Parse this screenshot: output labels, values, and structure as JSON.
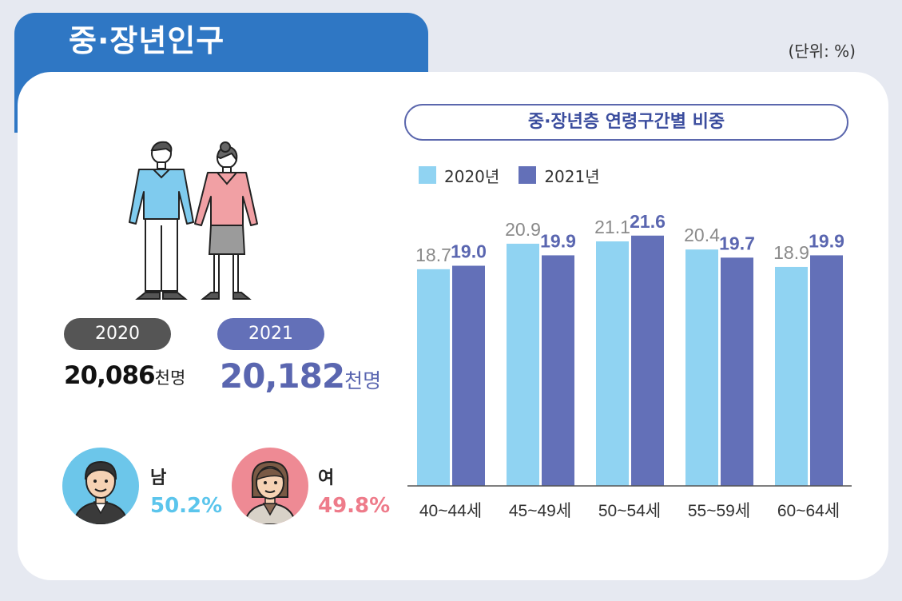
{
  "header": {
    "title": "중·장년인구",
    "unit": "(단위: %)"
  },
  "people": {
    "years": [
      {
        "year": "2020",
        "count": "20,086",
        "unit": "천명"
      },
      {
        "year": "2021",
        "count": "20,182",
        "unit": "천명"
      }
    ],
    "gender": [
      {
        "label": "남",
        "value": "50.2%"
      },
      {
        "label": "여",
        "value": "49.8%"
      }
    ]
  },
  "colors": {
    "s2020": "#90d3f2",
    "s2021": "#6370b8",
    "male": "#5bc5ec",
    "female": "#ee7b8a",
    "accent": "#2f77c4"
  },
  "chart_data": {
    "type": "bar",
    "title": "중·장년층 연령구간별 비중",
    "categories": [
      "40~44세",
      "45~49세",
      "50~54세",
      "55~59세",
      "60~64세"
    ],
    "series": [
      {
        "name": "2020년",
        "values": [
          18.7,
          20.9,
          21.1,
          20.4,
          18.9
        ]
      },
      {
        "name": "2021년",
        "values": [
          19.0,
          19.9,
          21.6,
          19.7,
          19.9
        ]
      }
    ],
    "ylim": [
      0,
      24
    ],
    "grid": false,
    "legend": "top-left",
    "xlabel": "",
    "ylabel": ""
  }
}
